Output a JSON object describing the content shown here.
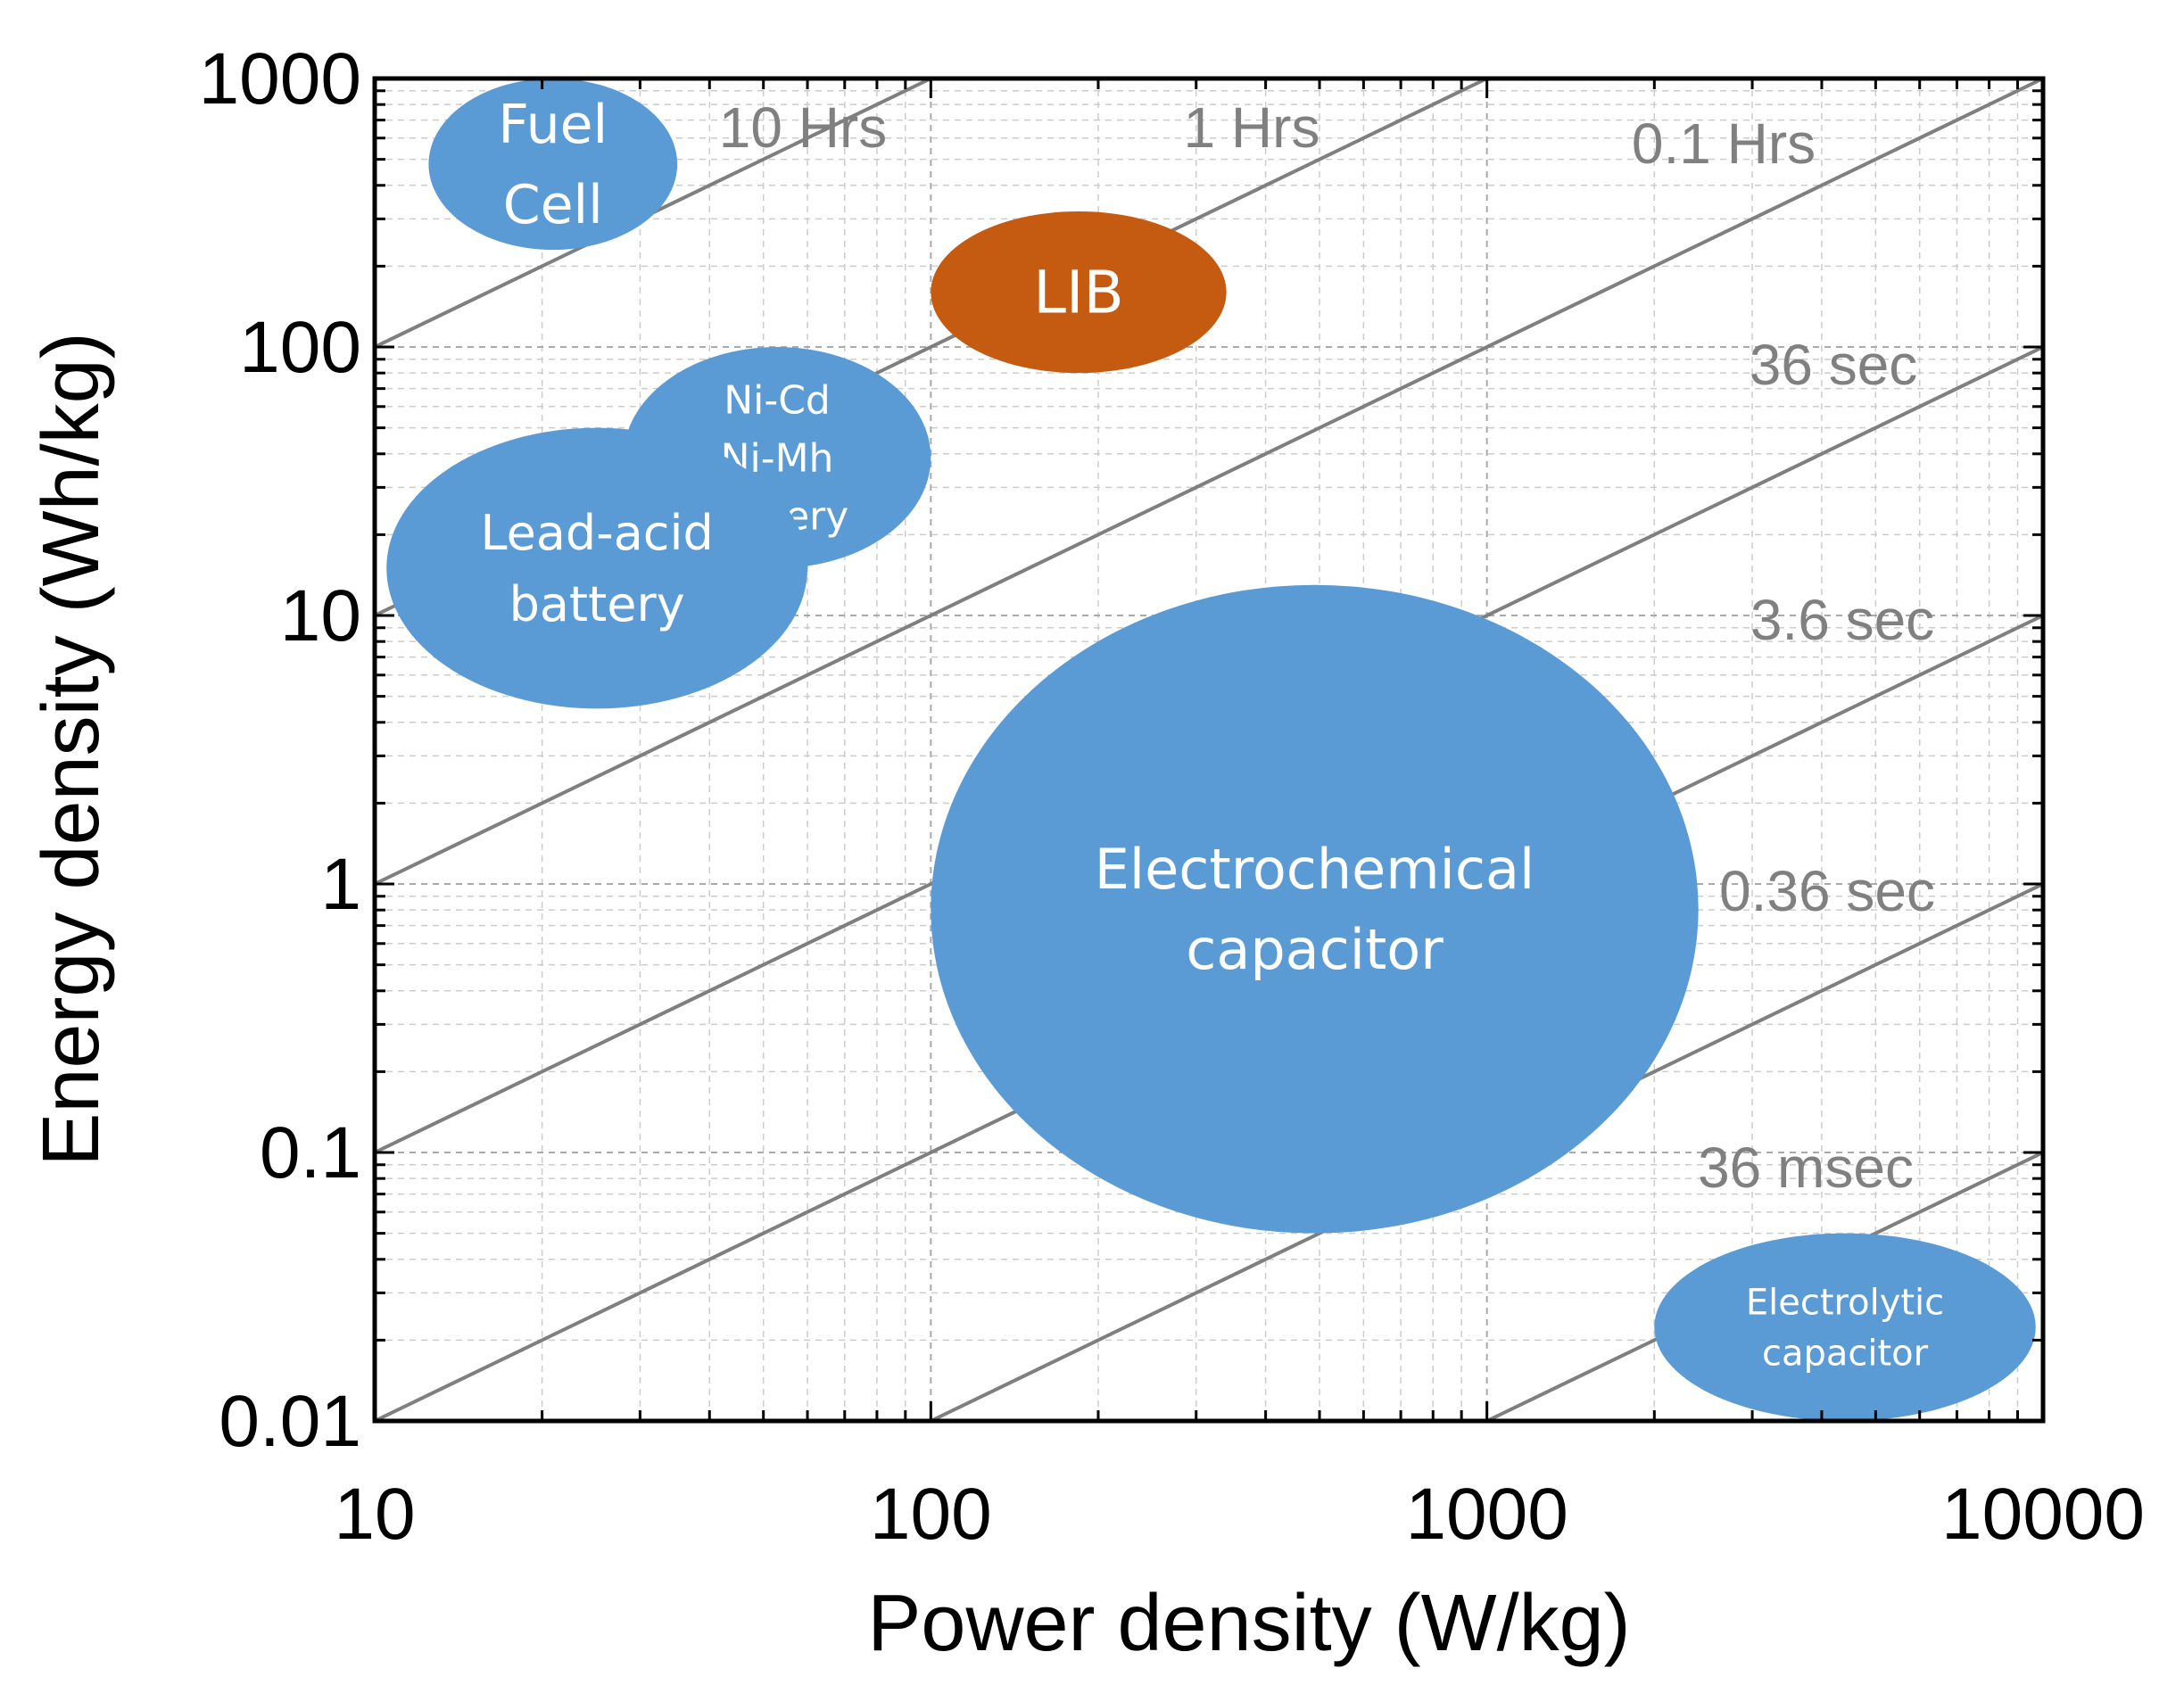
{
  "chart_data": {
    "type": "scatter",
    "title": "",
    "xlabel": "Power density (W/kg)",
    "ylabel": "Energy density (Wh/kg)",
    "xscale": "log",
    "yscale": "log",
    "xlim": [
      10,
      10000
    ],
    "ylim": [
      0.01,
      1000
    ],
    "xticks": [
      "10",
      "100",
      "1000",
      "10000"
    ],
    "yticks": [
      "1000",
      "100",
      "10",
      "1",
      "0.1",
      "0.01"
    ],
    "grid": true,
    "colors": {
      "blue": "#5b9bd5",
      "orange": "#c55a11",
      "line": "#7f7f7f",
      "label": "#808080"
    },
    "time_lines": [
      {
        "label": "10 Hrs",
        "hours": 10
      },
      {
        "label": "1 Hrs",
        "hours": 1
      },
      {
        "label": "0.1 Hrs",
        "hours": 0.1
      },
      {
        "label": "36 sec",
        "hours": 0.01
      },
      {
        "label": "3.6 sec",
        "hours": 0.001
      },
      {
        "label": "0.36 sec",
        "hours": 0.0001
      },
      {
        "label": "36 msec",
        "hours": 1e-05
      }
    ],
    "regions": [
      {
        "name": "fuel-cell",
        "lines": [
          "Fuel",
          "Cell"
        ],
        "color": "blue",
        "power_range": [
          12.5,
          35
        ],
        "energy_range": [
          230,
          1000
        ]
      },
      {
        "name": "lib",
        "lines": [
          "LIB"
        ],
        "color": "orange",
        "power_range": [
          100,
          340
        ],
        "energy_range": [
          80,
          320
        ]
      },
      {
        "name": "ni-cd-ni-mh",
        "lines": [
          "Ni-Cd",
          "Ni-Mh",
          "battery"
        ],
        "color": "blue",
        "power_range": [
          28,
          100
        ],
        "energy_range": [
          15,
          100
        ]
      },
      {
        "name": "lead-acid",
        "lines": [
          "Lead-acid",
          "battery"
        ],
        "color": "blue",
        "power_range": [
          10.5,
          60
        ],
        "energy_range": [
          4.5,
          50
        ]
      },
      {
        "name": "electrochemical-capacitor",
        "lines": [
          "Electrochemical",
          "capacitor"
        ],
        "color": "blue",
        "power_range": [
          100,
          2400
        ],
        "energy_range": [
          0.05,
          13
        ]
      },
      {
        "name": "electrolytic-capacitor",
        "lines": [
          "Electrolytic",
          "capacitor"
        ],
        "color": "blue",
        "power_range": [
          2000,
          9700
        ],
        "energy_range": [
          0.01,
          0.05
        ]
      }
    ]
  }
}
